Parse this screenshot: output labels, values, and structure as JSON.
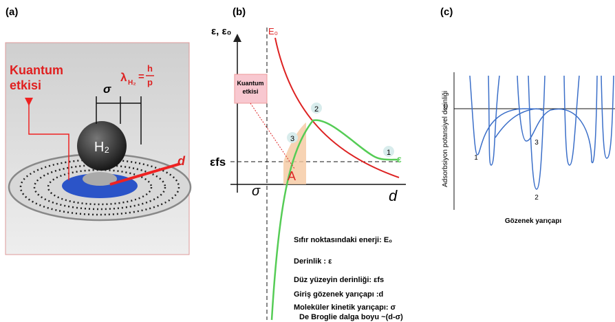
{
  "panel_a": {
    "label": "(a)",
    "quantum_label": [
      "Kuantum",
      "etkisi"
    ],
    "sigma": "σ",
    "lambda": "λ",
    "lambda_sub": "H₂",
    "h": "h",
    "p": "p",
    "equals": "=",
    "molecule": "H₂",
    "d": "d"
  },
  "panel_b": {
    "label": "(b)",
    "y_axis": "ε, ε₀",
    "e0": "E₀",
    "eps": "ε",
    "efs": "εfs",
    "sigma": "σ",
    "d": "d",
    "area": "A",
    "points": [
      "1",
      "2",
      "3"
    ],
    "quantum_box": [
      "Kuantum",
      "etkisi"
    ],
    "legend": [
      "Sıfır noktasındaki enerji: E₀",
      "Derinlik : ε",
      "Düz yüzeyin derinliği: εfs",
      "Giriş gözenek yarıçapı :d",
      "Moleküler kinetik yarıçapı: σ",
      "De Broglie dalga boyu ~(d-σ)"
    ]
  },
  "panel_c": {
    "label": "(c)",
    "y_axis": "Adsorbsiyon potansiyel derinliği",
    "zero": "0",
    "wells": [
      "1",
      "2",
      "3"
    ],
    "x_axis": "Gözenek yarıçapı"
  }
}
